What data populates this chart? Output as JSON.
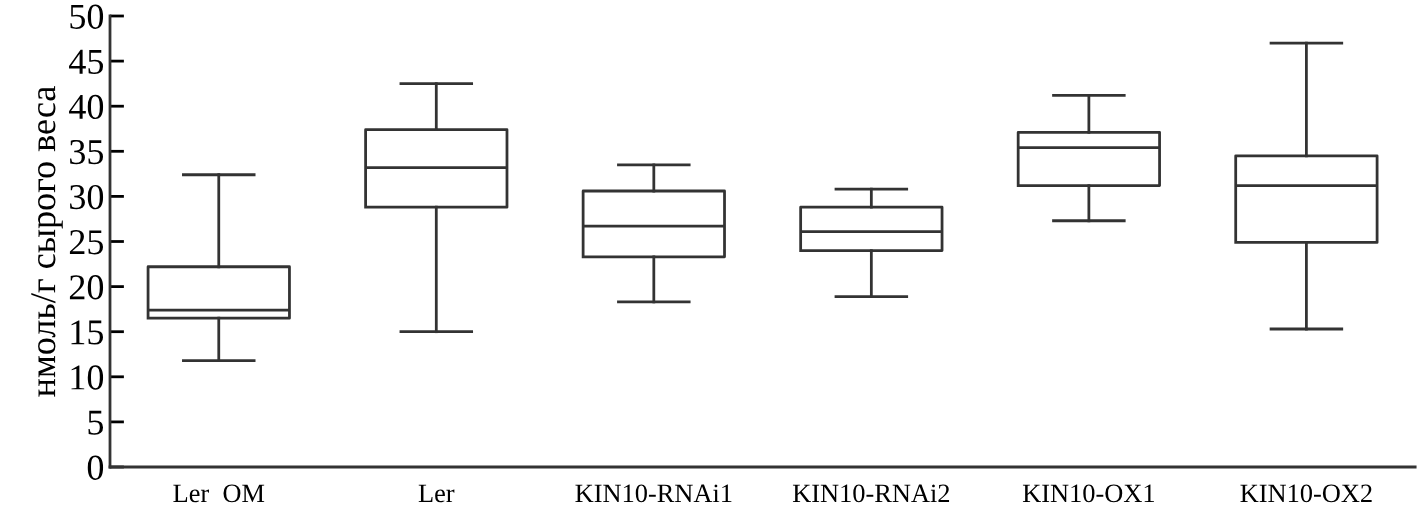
{
  "chart_data": {
    "type": "box",
    "ylabel": "нмоль/г сырого веса",
    "categories": [
      "Ler  OM",
      "Ler",
      "KIN10-RNAi1",
      "KIN10-RNAi2",
      "KIN10-OX1",
      "KIN10-OX2"
    ],
    "boxes": [
      {
        "low": 11.8,
        "q1": 16.5,
        "median": 17.4,
        "q3": 22.2,
        "high": 32.4
      },
      {
        "low": 15.0,
        "q1": 28.8,
        "median": 33.2,
        "q3": 37.4,
        "high": 42.5
      },
      {
        "low": 18.3,
        "q1": 23.3,
        "median": 26.7,
        "q3": 30.6,
        "high": 33.5
      },
      {
        "low": 18.9,
        "q1": 24.0,
        "median": 26.1,
        "q3": 28.8,
        "high": 30.8
      },
      {
        "low": 27.3,
        "q1": 31.2,
        "median": 35.4,
        "q3": 37.1,
        "high": 41.2
      },
      {
        "low": 15.3,
        "q1": 24.9,
        "median": 31.2,
        "q3": 34.5,
        "high": 47.0
      }
    ],
    "color": "#333333",
    "ylim": [
      0,
      50
    ],
    "yticks": [
      0,
      5,
      10,
      15,
      20,
      25,
      30,
      35,
      40,
      45,
      50
    ],
    "grid": false
  }
}
